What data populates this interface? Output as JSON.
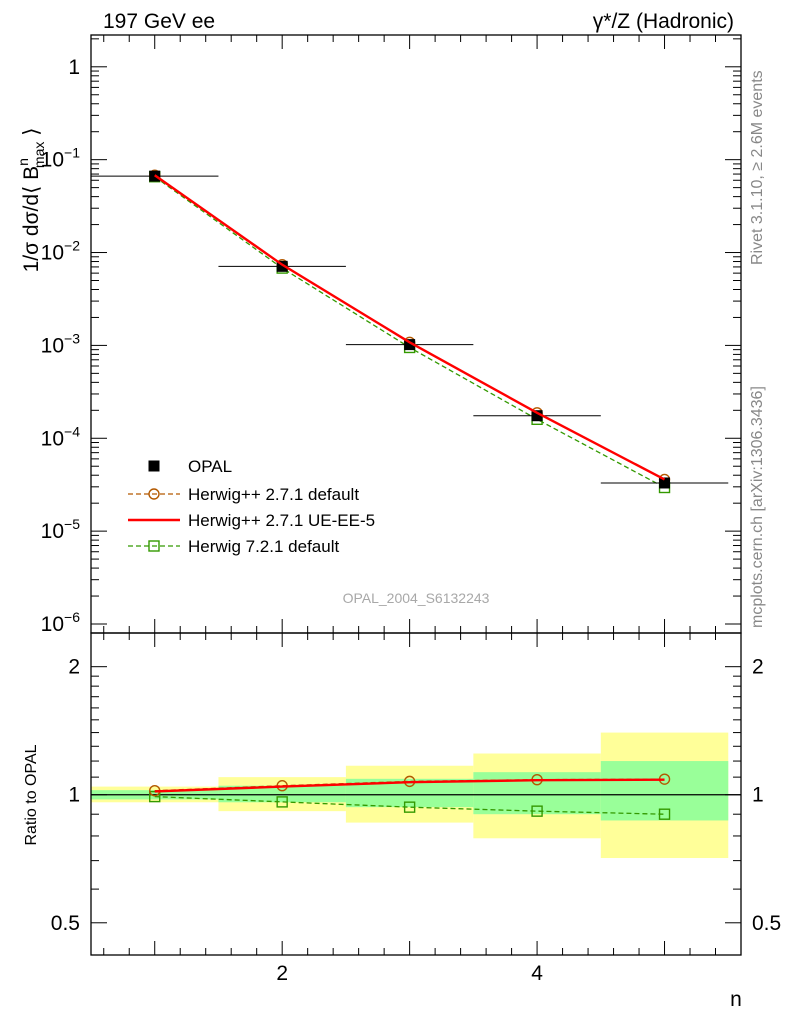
{
  "header": {
    "left": "197 GeV ee",
    "right": "γ*/Z (Hadronic)"
  },
  "side_labels": {
    "rivet": "Rivet 3.1.10, ≥ 2.6M events",
    "mcplots": "mcplots.cern.ch [arXiv:1306.3436]"
  },
  "watermark": "OPAL_2004_S6132243",
  "chart_data": [
    {
      "type": "line",
      "panel": "main",
      "ylabel": "1/σ dσ/d⟨ B^n_max ⟩",
      "yscale": "log",
      "ylim": [
        8e-07,
        2.2
      ],
      "xlim": [
        0.5,
        5.6
      ],
      "ytick_labels": [
        "1",
        "10^-1",
        "10^-2",
        "10^-3",
        "10^-4",
        "10^-5",
        "10^-6"
      ],
      "legend_position": "lower-left",
      "legend": [
        "OPAL",
        "Herwig++ 2.7.1 default",
        "Herwig++ 2.7.1 UE-EE-5",
        "Herwig 7.2.1 default"
      ],
      "x": [
        1,
        2,
        3,
        4,
        5
      ],
      "series": [
        {
          "name": "OPAL",
          "style": "data-square",
          "color": "#000000",
          "values": [
            0.0665,
            0.0071,
            0.00102,
            0.000175,
            3.3e-05
          ],
          "xerr": [
            0.5,
            0.5,
            0.5,
            0.5,
            0.5
          ]
        },
        {
          "name": "Herwig++ 2.7.1 default",
          "style": "dashed-circle",
          "color": "#b35900",
          "values": [
            0.068,
            0.0074,
            0.00108,
            0.000188,
            3.6e-05
          ]
        },
        {
          "name": "Herwig++ 2.7.1 UE-EE-5",
          "style": "solid",
          "color": "#ff0000",
          "values": [
            0.068,
            0.0074,
            0.00108,
            0.000188,
            3.6e-05
          ]
        },
        {
          "name": "Herwig 7.2.1 default",
          "style": "dashed-square",
          "color": "#339900",
          "values": [
            0.0655,
            0.0068,
            0.00095,
            0.00016,
            2.95e-05
          ]
        }
      ]
    },
    {
      "type": "line",
      "panel": "ratio",
      "ylabel": "Ratio to OPAL",
      "xlabel": "n",
      "yscale": "log",
      "ylim": [
        0.42,
        2.4
      ],
      "xlim": [
        0.5,
        5.6
      ],
      "ytick_labels": [
        "0.5",
        "1",
        "2"
      ],
      "xtick_labels": [
        "2",
        "4"
      ],
      "bins": [
        [
          0.5,
          1.5
        ],
        [
          1.5,
          2.5
        ],
        [
          2.5,
          3.5
        ],
        [
          3.5,
          4.5
        ],
        [
          4.5,
          5.5
        ]
      ],
      "bands": {
        "total": {
          "color": "#ffff99",
          "low": [
            0.96,
            0.915,
            0.86,
            0.79,
            0.71
          ],
          "high": [
            1.045,
            1.1,
            1.17,
            1.25,
            1.4
          ]
        },
        "stat": {
          "color": "#99ff99",
          "low": [
            0.975,
            0.96,
            0.935,
            0.9,
            0.87
          ],
          "high": [
            1.025,
            1.05,
            1.09,
            1.13,
            1.2
          ]
        }
      },
      "x": [
        1,
        2,
        3,
        4,
        5
      ],
      "series": [
        {
          "name": "Herwig++ 2.7.1 default",
          "style": "dashed-circle",
          "color": "#b35900",
          "values": [
            1.022,
            1.05,
            1.075,
            1.085,
            1.088
          ]
        },
        {
          "name": "Herwig++ 2.7.1 UE-EE-5",
          "style": "solid",
          "color": "#ff0000",
          "values": [
            1.018,
            1.045,
            1.07,
            1.082,
            1.085
          ]
        },
        {
          "name": "Herwig 7.2.1 default",
          "style": "dashed-square",
          "color": "#339900",
          "values": [
            0.99,
            0.962,
            0.935,
            0.915,
            0.9
          ]
        }
      ]
    }
  ]
}
